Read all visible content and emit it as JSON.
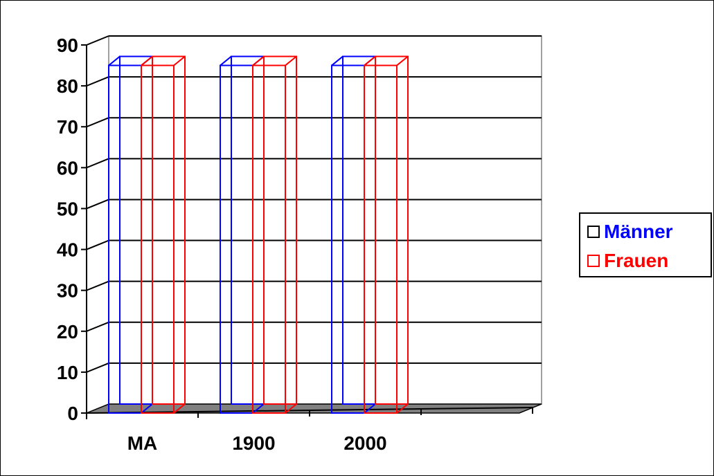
{
  "chart_data": {
    "type": "bar",
    "categories": [
      "MA",
      "1900",
      "2000",
      ""
    ],
    "series": [
      {
        "name": "Männer",
        "values": [
          85,
          85,
          85,
          null
        ],
        "color": "#0000ff"
      },
      {
        "name": "Frauen",
        "values": [
          85,
          85,
          85,
          null
        ],
        "color": "#ff0000"
      }
    ],
    "ylim": [
      0,
      90
    ],
    "yticks": [
      "0",
      "10",
      "20",
      "30",
      "40",
      "50",
      "60",
      "70",
      "80",
      "90"
    ],
    "grid": true,
    "legend_placement": "right",
    "style": "3d-outline"
  },
  "colors": {
    "floor": "#808080",
    "gridline": "#000000",
    "plot_border": "#808080",
    "legend_swatch_border_frauen": "#ff0000"
  }
}
